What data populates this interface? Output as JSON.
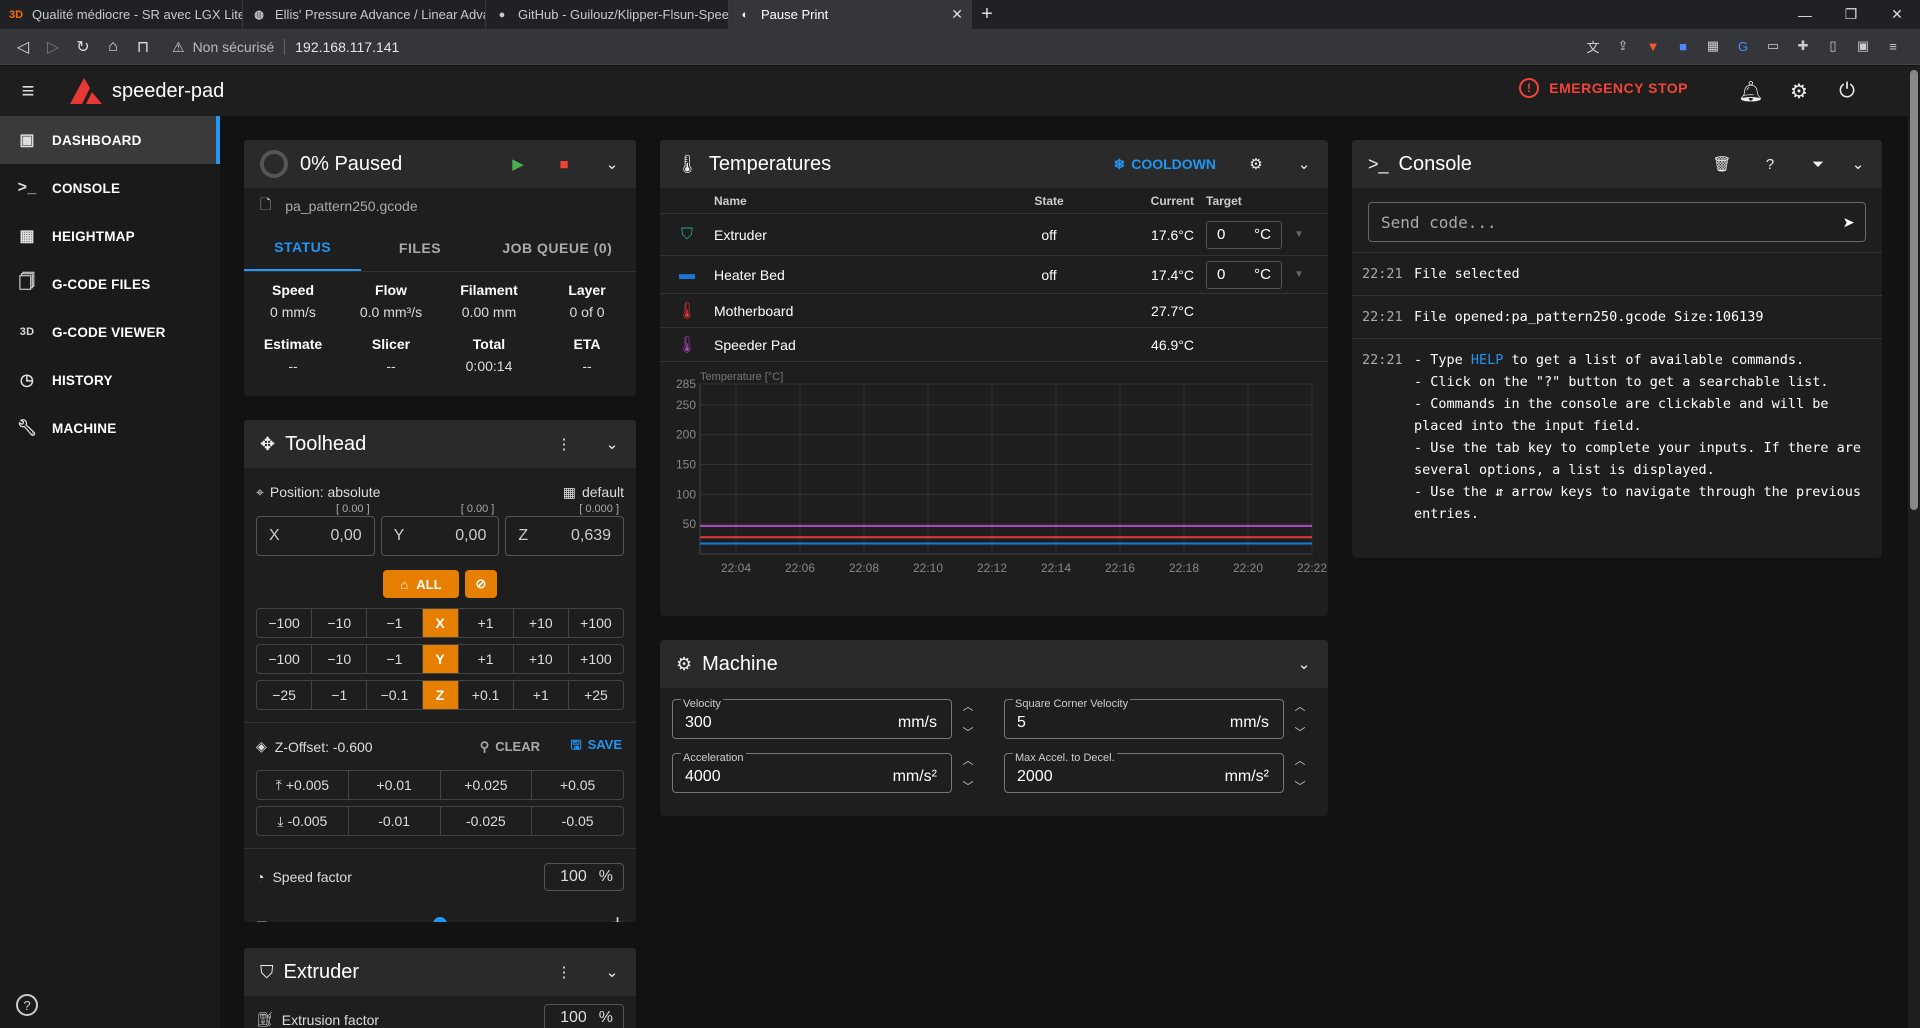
{
  "browser": {
    "tabs": [
      {
        "label": "Qualité médiocre - SR avec LGX Lite et",
        "favicon": "3D",
        "active": false
      },
      {
        "label": "Ellis' Pressure Advance / Linear Advanc",
        "favicon": "globe-icon",
        "active": false
      },
      {
        "label": "GitHub - Guilouz/Klipper-Flsun-Speed",
        "favicon": "github-icon",
        "active": false
      },
      {
        "label": "Pause Print",
        "favicon": "moon-icon",
        "active": true
      }
    ],
    "security_label": "Non sécurisé",
    "url": "192.168.117.141"
  },
  "app": {
    "title": "speeder-pad",
    "emergency_stop": "EMERGENCY STOP",
    "accent_color": "#2196f3",
    "danger_color": "#f44336",
    "orange_color": "#e67e00"
  },
  "sidebar": {
    "items": [
      {
        "label": "DASHBOARD",
        "icon": "dashboard-icon",
        "active": true
      },
      {
        "label": "CONSOLE",
        "icon": "console-icon"
      },
      {
        "label": "HEIGHTMAP",
        "icon": "grid-icon"
      },
      {
        "label": "G-CODE FILES",
        "icon": "file-icon"
      },
      {
        "label": "G-CODE VIEWER",
        "icon": "3d-icon"
      },
      {
        "label": "HISTORY",
        "icon": "history-icon"
      },
      {
        "label": "MACHINE",
        "icon": "wrench-icon"
      }
    ]
  },
  "status": {
    "title": "0% Paused",
    "file": "pa_pattern250.gcode",
    "tabs": [
      "STATUS",
      "FILES",
      "JOB QUEUE (0)"
    ],
    "row1": [
      {
        "k": "Speed",
        "v": "0 mm/s"
      },
      {
        "k": "Flow",
        "v": "0.0 mm³/s"
      },
      {
        "k": "Filament",
        "v": "0.00 mm"
      },
      {
        "k": "Layer",
        "v": "0 of 0"
      }
    ],
    "row2": [
      {
        "k": "Estimate",
        "v": "--"
      },
      {
        "k": "Slicer",
        "v": "--"
      },
      {
        "k": "Total",
        "v": "0:00:14"
      },
      {
        "k": "ETA",
        "v": "--"
      }
    ]
  },
  "toolhead": {
    "title": "Toolhead",
    "position_label": "Position: absolute",
    "profile": "default",
    "axes": [
      {
        "label": "X",
        "value": "0,00",
        "max": "[ 0.00 ]"
      },
      {
        "label": "Y",
        "value": "0,00",
        "max": "[ 0.00 ]"
      },
      {
        "label": "Z",
        "value": "0,639",
        "max": "[ 0.000 ]"
      }
    ],
    "home_all": "ALL",
    "jog_x": {
      "axis": "X",
      "neg": [
        "−100",
        "−10",
        "−1"
      ],
      "pos": [
        "+1",
        "+10",
        "+100"
      ]
    },
    "jog_y": {
      "axis": "Y",
      "neg": [
        "−100",
        "−10",
        "−1"
      ],
      "pos": [
        "+1",
        "+10",
        "+100"
      ]
    },
    "jog_z": {
      "axis": "Z",
      "neg": [
        "−25",
        "−1",
        "−0.1"
      ],
      "pos": [
        "+0.1",
        "+1",
        "+25"
      ]
    },
    "zoffset_label": "Z-Offset: -0.600",
    "clear": "CLEAR",
    "save": "SAVE",
    "z_up": [
      "+0.005",
      "+0.01",
      "+0.025",
      "+0.05"
    ],
    "z_down": [
      "-0.005",
      "-0.01",
      "-0.025",
      "-0.05"
    ],
    "speed_factor_label": "Speed factor",
    "speed_factor": "100",
    "speed_factor_fraction": 0.5,
    "percent": "%"
  },
  "extruder_panel": {
    "title": "Extruder",
    "extrusion_factor_label": "Extrusion factor",
    "extrusion_factor": "100",
    "percent": "%"
  },
  "temperatures": {
    "title": "Temperatures",
    "cooldown": "COOLDOWN",
    "columns": [
      "Name",
      "State",
      "Current",
      "Target"
    ],
    "rows": [
      {
        "name": "Extruder",
        "state": "off",
        "current": "17.6°C",
        "target": "0",
        "unit": "°C",
        "icon": "extruder-icon",
        "color": "#26a69a"
      },
      {
        "name": "Heater Bed",
        "state": "off",
        "current": "17.4°C",
        "target": "0",
        "unit": "°C",
        "icon": "bed-icon",
        "color": "#1976d2"
      },
      {
        "name": "Motherboard",
        "state": "",
        "current": "27.7°C",
        "icon": "thermometer-icon",
        "color": "#e53935"
      },
      {
        "name": "Speeder Pad",
        "state": "",
        "current": "46.9°C",
        "icon": "thermometer-icon",
        "color": "#ab47bc"
      }
    ]
  },
  "chart_data": {
    "type": "line",
    "ylabel": "Temperature [°C]",
    "ylim": [
      0,
      285
    ],
    "yticks": [
      50,
      100,
      150,
      200,
      250,
      285
    ],
    "xticks": [
      "22:04",
      "22:06",
      "22:08",
      "22:10",
      "22:12",
      "22:14",
      "22:16",
      "22:18",
      "22:20",
      "22:22"
    ],
    "grid": true,
    "series": [
      {
        "color": "#ab47bc",
        "values": [
          47,
          47,
          47,
          47,
          47,
          47,
          47,
          47,
          47,
          47
        ]
      },
      {
        "color": "#e53935",
        "values": [
          28,
          28,
          28,
          28,
          28,
          28,
          28,
          28,
          28,
          28
        ]
      },
      {
        "color": "#26a69a",
        "values": [
          17.6,
          17.6,
          17.6,
          17.6,
          17.6,
          17.6,
          17.6,
          17.6,
          17.6,
          17.6
        ]
      },
      {
        "color": "#1976d2",
        "values": [
          17.4,
          17.4,
          17.4,
          17.4,
          17.4,
          17.4,
          17.4,
          17.4,
          17.4,
          17.4
        ]
      }
    ]
  },
  "machine": {
    "title": "Machine",
    "fields": [
      {
        "label": "Velocity",
        "value": "300",
        "unit": "mm/s"
      },
      {
        "label": "Square Corner Velocity",
        "value": "5",
        "unit": "mm/s"
      },
      {
        "label": "Acceleration",
        "value": "4000",
        "unit": "mm/s²"
      },
      {
        "label": "Max Accel. to Decel.",
        "value": "2000",
        "unit": "mm/s²"
      }
    ]
  },
  "console": {
    "title": "Console",
    "placeholder": "Send code...",
    "lines": [
      {
        "time": "22:21",
        "text": "File selected"
      },
      {
        "time": "22:21",
        "text": "File opened:pa_pattern250.gcode Size:106139"
      }
    ],
    "help_time": "22:21",
    "help_prefix": "- Type ",
    "help_word": "HELP",
    "help_suffix": " to get a list of available commands.",
    "help_lines": [
      "- Click on the \"?\" button to get a searchable list.",
      "- Commands in the console are clickable and will be",
      "placed into the input field.",
      "- Use the tab key to complete your inputs. If there are",
      "several options, a list is displayed.",
      "- Use the ⇵ arrow keys to navigate through the previous",
      "entries."
    ]
  }
}
